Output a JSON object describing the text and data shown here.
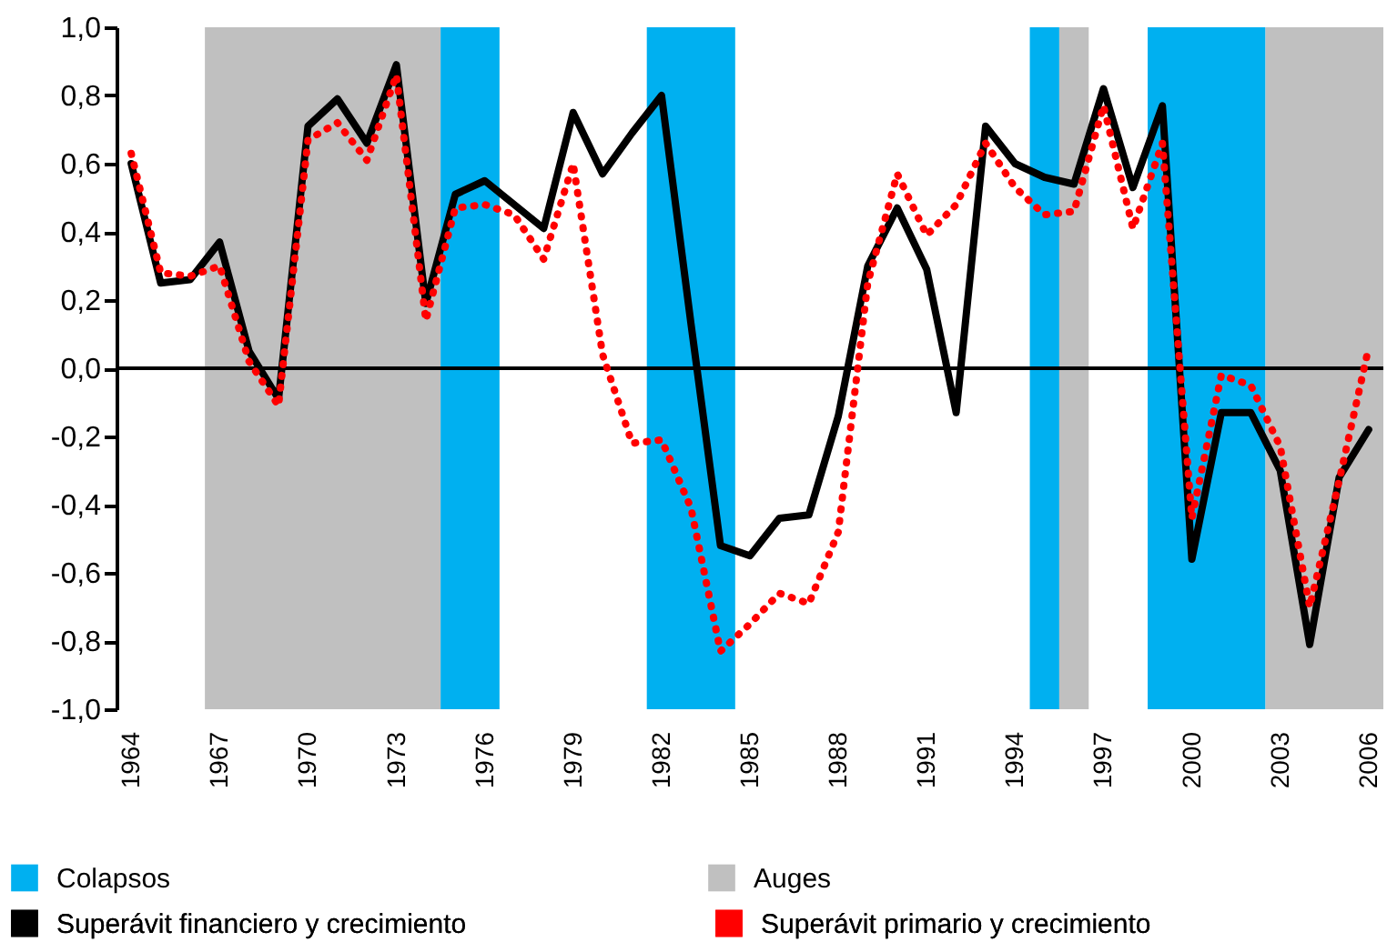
{
  "chart_data": {
    "type": "line",
    "x": [
      1964,
      1965,
      1966,
      1967,
      1968,
      1969,
      1970,
      1971,
      1972,
      1973,
      1974,
      1975,
      1976,
      1977,
      1978,
      1979,
      1980,
      1981,
      1982,
      1983,
      1984,
      1985,
      1986,
      1987,
      1988,
      1989,
      1990,
      1991,
      1992,
      1993,
      1994,
      1995,
      1996,
      1997,
      1998,
      1999,
      2000,
      2001,
      2002,
      2003,
      2004,
      2005,
      2006
    ],
    "series": [
      {
        "name": "Superávit financiero y crecimiento",
        "color": "#000000",
        "line_style": "solid",
        "values": [
          0.6,
          0.25,
          0.26,
          0.37,
          0.05,
          -0.09,
          0.71,
          0.79,
          0.66,
          0.89,
          0.19,
          0.51,
          0.55,
          0.48,
          0.41,
          0.75,
          0.57,
          0.69,
          0.8,
          0.13,
          -0.52,
          -0.55,
          -0.44,
          -0.43,
          -0.14,
          0.3,
          0.47,
          0.29,
          -0.13,
          0.71,
          0.6,
          0.56,
          0.54,
          0.82,
          0.53,
          0.77,
          -0.56,
          -0.13,
          -0.13,
          -0.3,
          -0.81,
          -0.32,
          -0.18
        ]
      },
      {
        "name": "Superávit primario y crecimiento",
        "color": "#ff0000",
        "line_style": "dotted",
        "values": [
          0.63,
          0.28,
          0.27,
          0.3,
          0.02,
          -0.11,
          0.67,
          0.72,
          0.61,
          0.86,
          0.14,
          0.47,
          0.48,
          0.45,
          0.32,
          0.6,
          0.04,
          -0.22,
          -0.21,
          -0.41,
          -0.83,
          -0.75,
          -0.66,
          -0.69,
          -0.48,
          0.25,
          0.57,
          0.39,
          0.48,
          0.66,
          0.53,
          0.45,
          0.46,
          0.77,
          0.41,
          0.66,
          -0.44,
          -0.02,
          -0.05,
          -0.23,
          -0.7,
          -0.33,
          0.06
        ]
      }
    ],
    "bands": [
      {
        "axis": "x",
        "from": 1974.5,
        "to": 1976.5,
        "label": "Colapsos",
        "color": "#00b0f0"
      },
      {
        "axis": "x",
        "from": 1966.5,
        "to": 1974.5,
        "label": "Auges",
        "color": "#c0c0c0"
      },
      {
        "axis": "x",
        "from": 1981.5,
        "to": 1984.5,
        "color": "#00b0f0"
      },
      {
        "axis": "x",
        "from": 1994.5,
        "to": 1995.5,
        "color": "#00b0f0"
      },
      {
        "axis": "x",
        "from": 1995.5,
        "to": 1996.5,
        "color": "#c0c0c0"
      },
      {
        "axis": "x",
        "from": 1998.5,
        "to": 2002.5,
        "color": "#00b0f0"
      },
      {
        "axis": "x",
        "from": 2002.5,
        "to": 2006.5,
        "color": "#c0c0c0"
      }
    ],
    "ref_lines": [
      {
        "axis": "y",
        "value": 0,
        "color": "#000000"
      }
    ],
    "xlim": [
      1963.5,
      2006.5
    ],
    "xticks": [
      1964,
      1967,
      1970,
      1973,
      1976,
      1979,
      1982,
      1985,
      1988,
      1991,
      1994,
      1997,
      2000,
      2003,
      2006
    ],
    "ylim": [
      -1,
      1
    ],
    "yticks": [
      {
        "value": -1,
        "label": "-1,0"
      },
      {
        "value": -0.8,
        "label": "-0,8"
      },
      {
        "value": -0.6,
        "label": "-0,6"
      },
      {
        "value": -0.4,
        "label": "-0,4"
      },
      {
        "value": -0.2,
        "label": "-0,2"
      },
      {
        "value": 0,
        "label": "0,0"
      },
      {
        "value": 0.2,
        "label": "0,2"
      },
      {
        "value": 0.4,
        "label": "0,4"
      },
      {
        "value": 0.6,
        "label": "0,6"
      },
      {
        "value": 0.8,
        "label": "0,8"
      },
      {
        "value": 1,
        "label": "1,0"
      }
    ],
    "grid": false,
    "legend": "bottom"
  }
}
